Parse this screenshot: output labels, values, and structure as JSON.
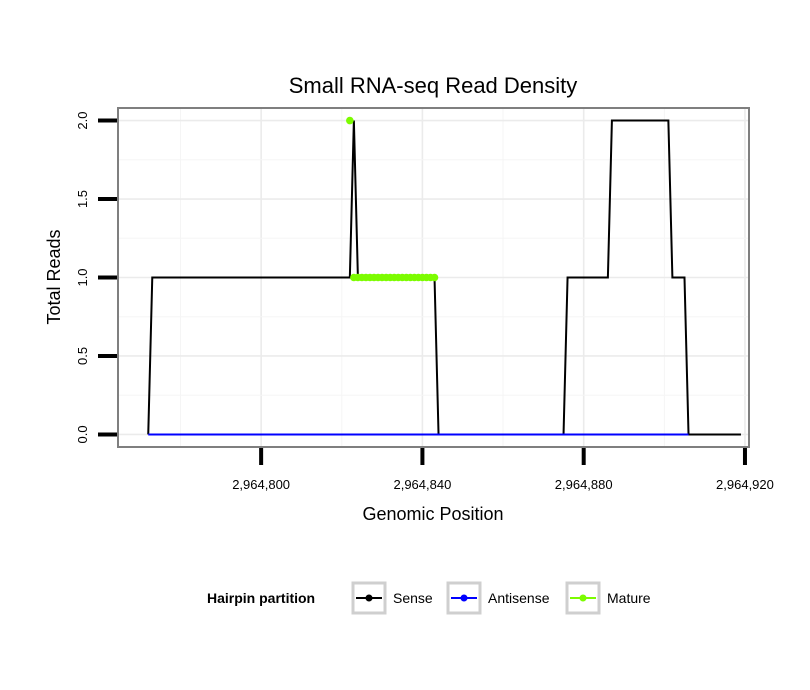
{
  "chart_data": {
    "type": "line",
    "title": "Small RNA-seq Read Density",
    "xlabel": "Genomic Position",
    "ylabel": "Total Reads",
    "xlim": [
      2964764.5,
      2964921
    ],
    "ylim": [
      -0.08,
      2.08
    ],
    "x_ticks": [
      2964800,
      2964840,
      2964880,
      2964920
    ],
    "x_tick_labels": [
      "2,964,800",
      "2,964,840",
      "2,964,880",
      "2,964,920"
    ],
    "y_ticks": [
      0.0,
      0.5,
      1.0,
      1.5,
      2.0
    ],
    "y_tick_labels": [
      "0.0",
      "0.5",
      "1.0",
      "1.5",
      "2.0"
    ],
    "grid": true,
    "legend": {
      "title": "Hairpin partition",
      "position": "bottom",
      "entries": [
        "Sense",
        "Antisense",
        "Mature"
      ]
    },
    "series": [
      {
        "name": "Sense",
        "color": "#000000",
        "x": [
          2964772,
          2964773,
          2964822,
          2964823,
          2964824,
          2964843,
          2964844,
          2964875,
          2964876,
          2964886,
          2964887,
          2964901,
          2964902,
          2964905,
          2964906,
          2964919
        ],
        "y": [
          0,
          1,
          1,
          2,
          1,
          1,
          0,
          0,
          1,
          1,
          2,
          2,
          1,
          1,
          0,
          0
        ]
      },
      {
        "name": "Antisense",
        "color": "#0000ff",
        "x": [
          2964772,
          2964906
        ],
        "y": [
          0,
          0
        ]
      },
      {
        "name": "Mature",
        "color": "#7cfc00",
        "points": [
          {
            "x": 2964822,
            "y": 2
          },
          {
            "x": 2964823,
            "y": 1
          },
          {
            "x": 2964824,
            "y": 1
          },
          {
            "x": 2964825,
            "y": 1
          },
          {
            "x": 2964826,
            "y": 1
          },
          {
            "x": 2964827,
            "y": 1
          },
          {
            "x": 2964828,
            "y": 1
          },
          {
            "x": 2964829,
            "y": 1
          },
          {
            "x": 2964830,
            "y": 1
          },
          {
            "x": 2964831,
            "y": 1
          },
          {
            "x": 2964832,
            "y": 1
          },
          {
            "x": 2964833,
            "y": 1
          },
          {
            "x": 2964834,
            "y": 1
          },
          {
            "x": 2964835,
            "y": 1
          },
          {
            "x": 2964836,
            "y": 1
          },
          {
            "x": 2964837,
            "y": 1
          },
          {
            "x": 2964838,
            "y": 1
          },
          {
            "x": 2964839,
            "y": 1
          },
          {
            "x": 2964840,
            "y": 1
          },
          {
            "x": 2964841,
            "y": 1
          },
          {
            "x": 2964842,
            "y": 1
          },
          {
            "x": 2964843,
            "y": 1
          }
        ]
      }
    ]
  }
}
